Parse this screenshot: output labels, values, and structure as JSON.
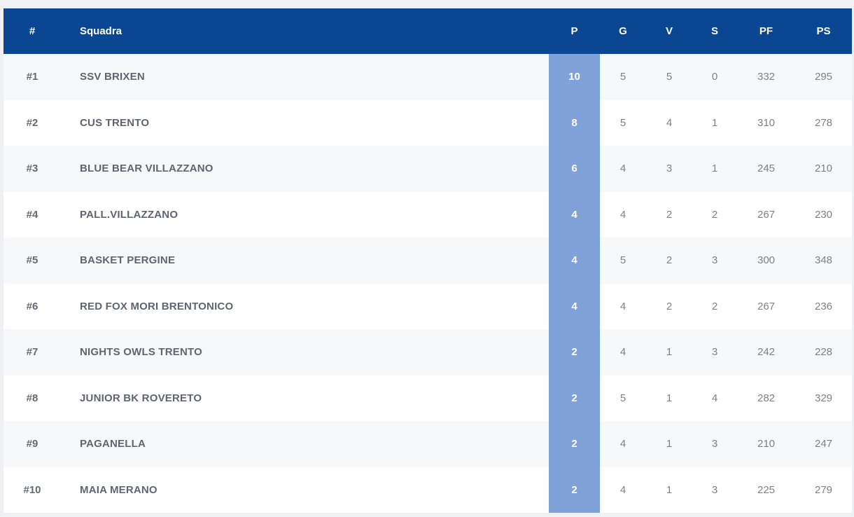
{
  "header": {
    "rank": "#",
    "team": "Squadra",
    "points": "P",
    "played": "G",
    "won": "V",
    "lost": "S",
    "points_for": "PF",
    "points_against": "PS"
  },
  "rows": [
    {
      "rank": "#1",
      "team": "SSV BRIXEN",
      "points": "10",
      "played": "5",
      "won": "5",
      "lost": "0",
      "points_for": "332",
      "points_against": "295"
    },
    {
      "rank": "#2",
      "team": "CUS TRENTO",
      "points": "8",
      "played": "5",
      "won": "4",
      "lost": "1",
      "points_for": "310",
      "points_against": "278"
    },
    {
      "rank": "#3",
      "team": "BLUE BEAR VILLAZZANO",
      "points": "6",
      "played": "4",
      "won": "3",
      "lost": "1",
      "points_for": "245",
      "points_against": "210"
    },
    {
      "rank": "#4",
      "team": "PALL.VILLAZZANO",
      "points": "4",
      "played": "4",
      "won": "2",
      "lost": "2",
      "points_for": "267",
      "points_against": "230"
    },
    {
      "rank": "#5",
      "team": "BASKET PERGINE",
      "points": "4",
      "played": "5",
      "won": "2",
      "lost": "3",
      "points_for": "300",
      "points_against": "348"
    },
    {
      "rank": "#6",
      "team": "RED FOX MORI BRENTONICO",
      "points": "4",
      "played": "4",
      "won": "2",
      "lost": "2",
      "points_for": "267",
      "points_against": "236"
    },
    {
      "rank": "#7",
      "team": "NIGHTS OWLS TRENTO",
      "points": "2",
      "played": "4",
      "won": "1",
      "lost": "3",
      "points_for": "242",
      "points_against": "228"
    },
    {
      "rank": "#8",
      "team": "JUNIOR BK ROVERETO",
      "points": "2",
      "played": "5",
      "won": "1",
      "lost": "4",
      "points_for": "282",
      "points_against": "329"
    },
    {
      "rank": "#9",
      "team": "PAGANELLA",
      "points": "2",
      "played": "4",
      "won": "1",
      "lost": "3",
      "points_for": "210",
      "points_against": "247"
    },
    {
      "rank": "#10",
      "team": "MAIA MERANO",
      "points": "2",
      "played": "4",
      "won": "1",
      "lost": "3",
      "points_for": "225",
      "points_against": "279"
    }
  ],
  "colors": {
    "header_bg": "#0b4693",
    "points_column_bg": "#81a2d9"
  }
}
